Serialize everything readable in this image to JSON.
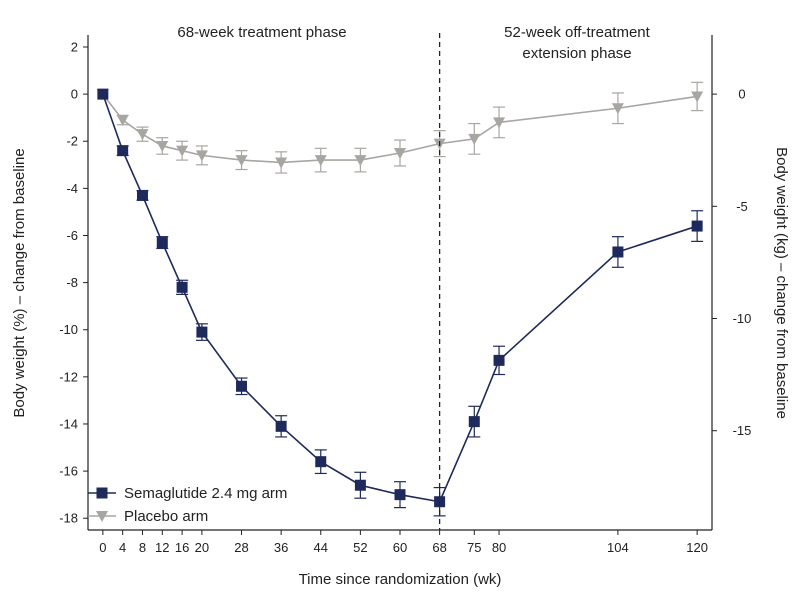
{
  "chart_data": {
    "type": "line",
    "x_ticks": [
      0,
      4,
      8,
      12,
      16,
      20,
      28,
      36,
      44,
      52,
      60,
      68,
      75,
      80,
      104,
      120
    ],
    "xlim": [
      -3,
      123
    ],
    "ylim": [
      -18.5,
      2
    ],
    "y_ticks": [
      2,
      0,
      -2,
      -4,
      -6,
      -8,
      -10,
      -12,
      -14,
      -16,
      -18
    ],
    "y2_ticks": [
      0,
      -5,
      -10,
      -15
    ],
    "y2_scale_kg_per_percent": 1.05,
    "xlabel": "Time since randomization (wk)",
    "ylabel": "Body weight (%) – change from baseline",
    "y2label": "Body weight (kg) – change from baseline",
    "phase_divider_x": 68,
    "phase_labels": {
      "treatment": "68-week treatment phase",
      "extension_line1": "52-week off-treatment",
      "extension_line2": "extension phase"
    },
    "legend_position": "bottom-left",
    "series": [
      {
        "name": "Semaglutide 2.4 mg arm",
        "color": "#1f2a5c",
        "marker": "square",
        "x": [
          0,
          4,
          8,
          12,
          16,
          20,
          28,
          36,
          44,
          52,
          60,
          68,
          75,
          80,
          104,
          120
        ],
        "values": [
          0,
          -2.4,
          -4.3,
          -6.3,
          -8.2,
          -10.1,
          -12.4,
          -14.1,
          -15.6,
          -16.6,
          -17.0,
          -17.3,
          -13.9,
          -11.3,
          -6.7,
          -5.6
        ],
        "errors": [
          0,
          0.2,
          0.2,
          0.25,
          0.3,
          0.35,
          0.35,
          0.45,
          0.5,
          0.55,
          0.55,
          0.6,
          0.65,
          0.6,
          0.65,
          0.65
        ]
      },
      {
        "name": "Placebo arm",
        "color": "#a8a6a1",
        "marker": "triangle-down",
        "x": [
          0,
          4,
          8,
          12,
          16,
          20,
          28,
          36,
          44,
          52,
          60,
          68,
          75,
          80,
          104,
          120
        ],
        "values": [
          0,
          -1.1,
          -1.7,
          -2.2,
          -2.4,
          -2.6,
          -2.8,
          -2.9,
          -2.8,
          -2.8,
          -2.5,
          -2.1,
          -1.9,
          -1.2,
          -0.6,
          -0.1
        ],
        "errors": [
          0,
          0.2,
          0.3,
          0.35,
          0.4,
          0.4,
          0.4,
          0.45,
          0.5,
          0.5,
          0.55,
          0.55,
          0.65,
          0.65,
          0.65,
          0.6
        ]
      }
    ]
  }
}
